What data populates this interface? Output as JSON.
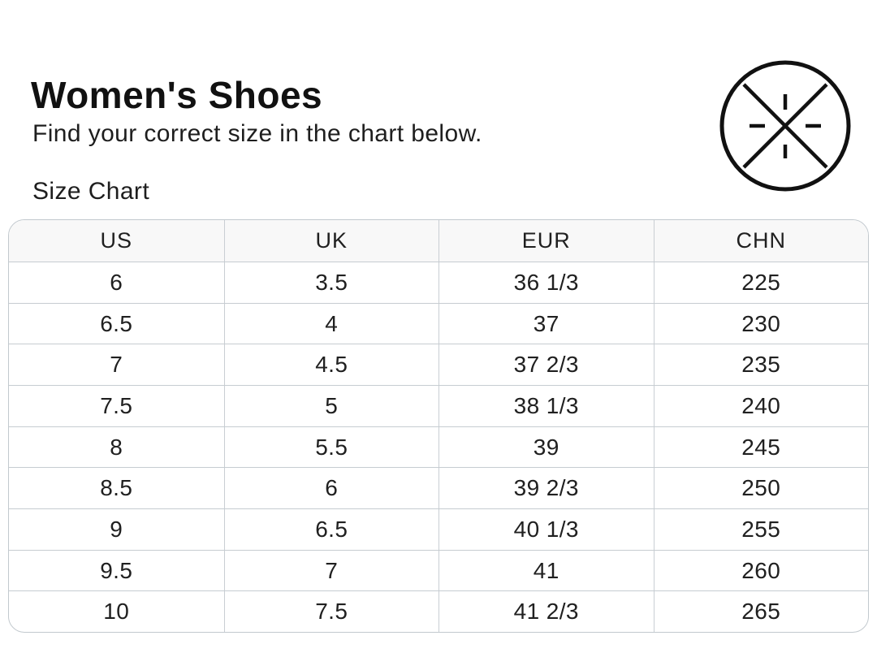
{
  "header": {
    "title": "Women's Shoes",
    "subtitle": "Find your correct size in the chart below.",
    "section_title": "Size Chart"
  },
  "logo": {
    "icon": "circle-x-asterisk-logo",
    "color": "#111111"
  },
  "size_chart": {
    "columns": [
      "US",
      "UK",
      "EUR",
      "CHN"
    ],
    "rows": [
      [
        "6",
        "3.5",
        "36 1/3",
        "225"
      ],
      [
        "6.5",
        "4",
        "37",
        "230"
      ],
      [
        "7",
        "4.5",
        "37 2/3",
        "235"
      ],
      [
        "7.5",
        "5",
        "38 1/3",
        "240"
      ],
      [
        "8",
        "5.5",
        "39",
        "245"
      ],
      [
        "8.5",
        "6",
        "39 2/3",
        "250"
      ],
      [
        "9",
        "6.5",
        "40 1/3",
        "255"
      ],
      [
        "9.5",
        "7",
        "41",
        "260"
      ],
      [
        "10",
        "7.5",
        "41 2/3",
        "265"
      ]
    ]
  },
  "colors": {
    "header_row_bg": "#f8f8f8",
    "table_border": "#c2c9ce",
    "text": "#1c1c1c"
  }
}
